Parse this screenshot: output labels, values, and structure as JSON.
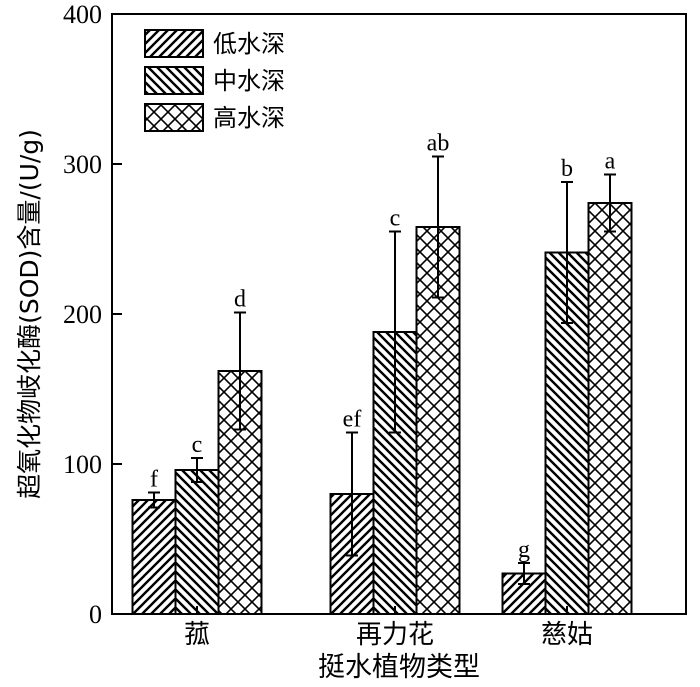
{
  "chart_data": {
    "type": "bar",
    "xlabel": "挺水植物类型",
    "ylabel": "超氧化物岐化酶(SOD)含量/(U/g)",
    "ylim": [
      0,
      400
    ],
    "yticks": [
      "0",
      "100",
      "200",
      "300",
      "400"
    ],
    "categories": [
      "菰",
      "再力花",
      "慈姑"
    ],
    "legend_position": "top-left",
    "grid": false,
    "series": [
      {
        "name": "低水深",
        "pattern": "diagonal-up",
        "values": [
          76,
          80,
          27
        ],
        "errors": [
          5,
          41,
          7
        ],
        "labels": [
          "f",
          "ef",
          "g"
        ]
      },
      {
        "name": "中水深",
        "pattern": "diagonal-down",
        "values": [
          96,
          188,
          241
        ],
        "errors": [
          8,
          67,
          47
        ],
        "labels": [
          "c",
          "c",
          "b"
        ]
      },
      {
        "name": "高水深",
        "pattern": "crosshatch",
        "values": [
          162,
          258,
          274
        ],
        "errors": [
          39,
          47,
          19
        ],
        "labels": [
          "d",
          "ab",
          "a"
        ]
      }
    ]
  }
}
